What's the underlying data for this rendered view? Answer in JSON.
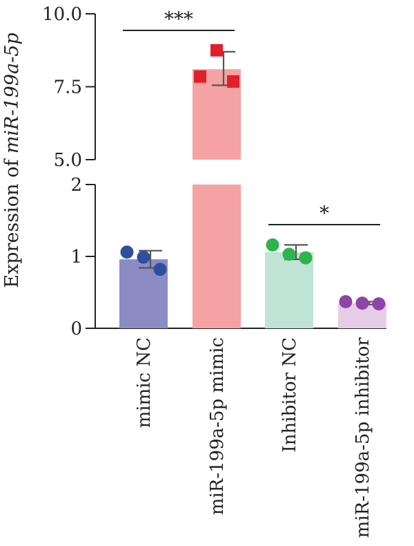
{
  "chart_data": {
    "type": "bar",
    "ylabel_prefix": "Expression of ",
    "ylabel_italic": "miR-199a-5p",
    "axis_break": true,
    "lower_ylim": [
      0,
      2
    ],
    "upper_ylim": [
      5,
      10
    ],
    "lower_ticks": [
      {
        "value": 0,
        "label": "0"
      },
      {
        "value": 1,
        "label": "1"
      },
      {
        "value": 2,
        "label": "2"
      }
    ],
    "upper_ticks": [
      {
        "value": 5,
        "label": "5.0"
      },
      {
        "value": 7.5,
        "label": "7.5"
      },
      {
        "value": 10,
        "label": "10.0"
      }
    ],
    "categories": [
      "mimic NC",
      "miR-199a-5p mimic",
      "Inhibitor NC",
      "miR-199a-5p inhibitor"
    ],
    "bars": [
      {
        "category": "mimic NC",
        "mean": 0.96,
        "err_low": 0.84,
        "err_high": 1.08,
        "points": [
          1.06,
          0.99,
          0.82
        ],
        "color": "#8b8cc4",
        "point_color": "#2f4e9e",
        "marker": "circle"
      },
      {
        "category": "miR-199a-5p mimic",
        "mean": 8.1,
        "err_low": 7.55,
        "err_high": 8.7,
        "points": [
          7.85,
          8.75,
          7.68
        ],
        "color": "#f4a2a3",
        "point_color": "#e0202a",
        "marker": "square"
      },
      {
        "category": "Inhibitor NC",
        "mean": 1.06,
        "err_low": 0.96,
        "err_high": 1.16,
        "points": [
          1.16,
          1.03,
          0.98
        ],
        "color": "#bfe3d5",
        "point_color": "#2bb54a",
        "marker": "circle"
      },
      {
        "category": "miR-199a-5p inhibitor",
        "mean": 0.35,
        "err_low": 0.33,
        "err_high": 0.37,
        "points": [
          0.37,
          0.35,
          0.34
        ],
        "color": "#e6cde6",
        "point_color": "#8e44a9",
        "marker": "circle"
      }
    ],
    "significance": [
      {
        "from": 0,
        "to": 1,
        "label": "***"
      },
      {
        "from": 2,
        "to": 3,
        "label": "*"
      }
    ]
  }
}
